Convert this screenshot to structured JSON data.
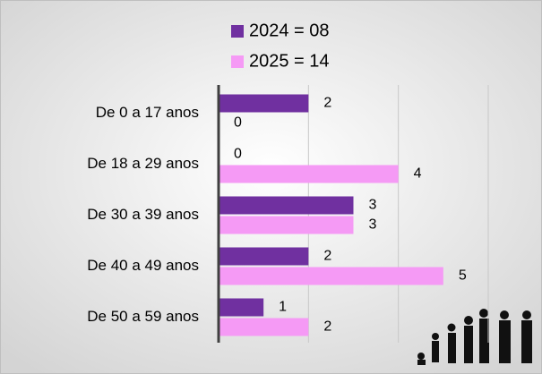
{
  "chart_data": {
    "type": "bar",
    "orientation": "horizontal",
    "categories": [
      "De 0 a 17 anos",
      "De 18 a 29 anos",
      "De 30 a 39 anos",
      "De 40 a 49 anos",
      "De 50 a 59 anos"
    ],
    "series": [
      {
        "name": "2024 = 08",
        "color": "#7030a0",
        "values": [
          2,
          0,
          3,
          2,
          1
        ]
      },
      {
        "name": "2025 = 14",
        "color": "#f59af5",
        "values": [
          0,
          4,
          3,
          5,
          2
        ]
      }
    ],
    "xlim": [
      0,
      6
    ],
    "xticks": [
      2,
      4,
      6
    ],
    "grid": true,
    "data_labels": true,
    "legend": "top"
  }
}
